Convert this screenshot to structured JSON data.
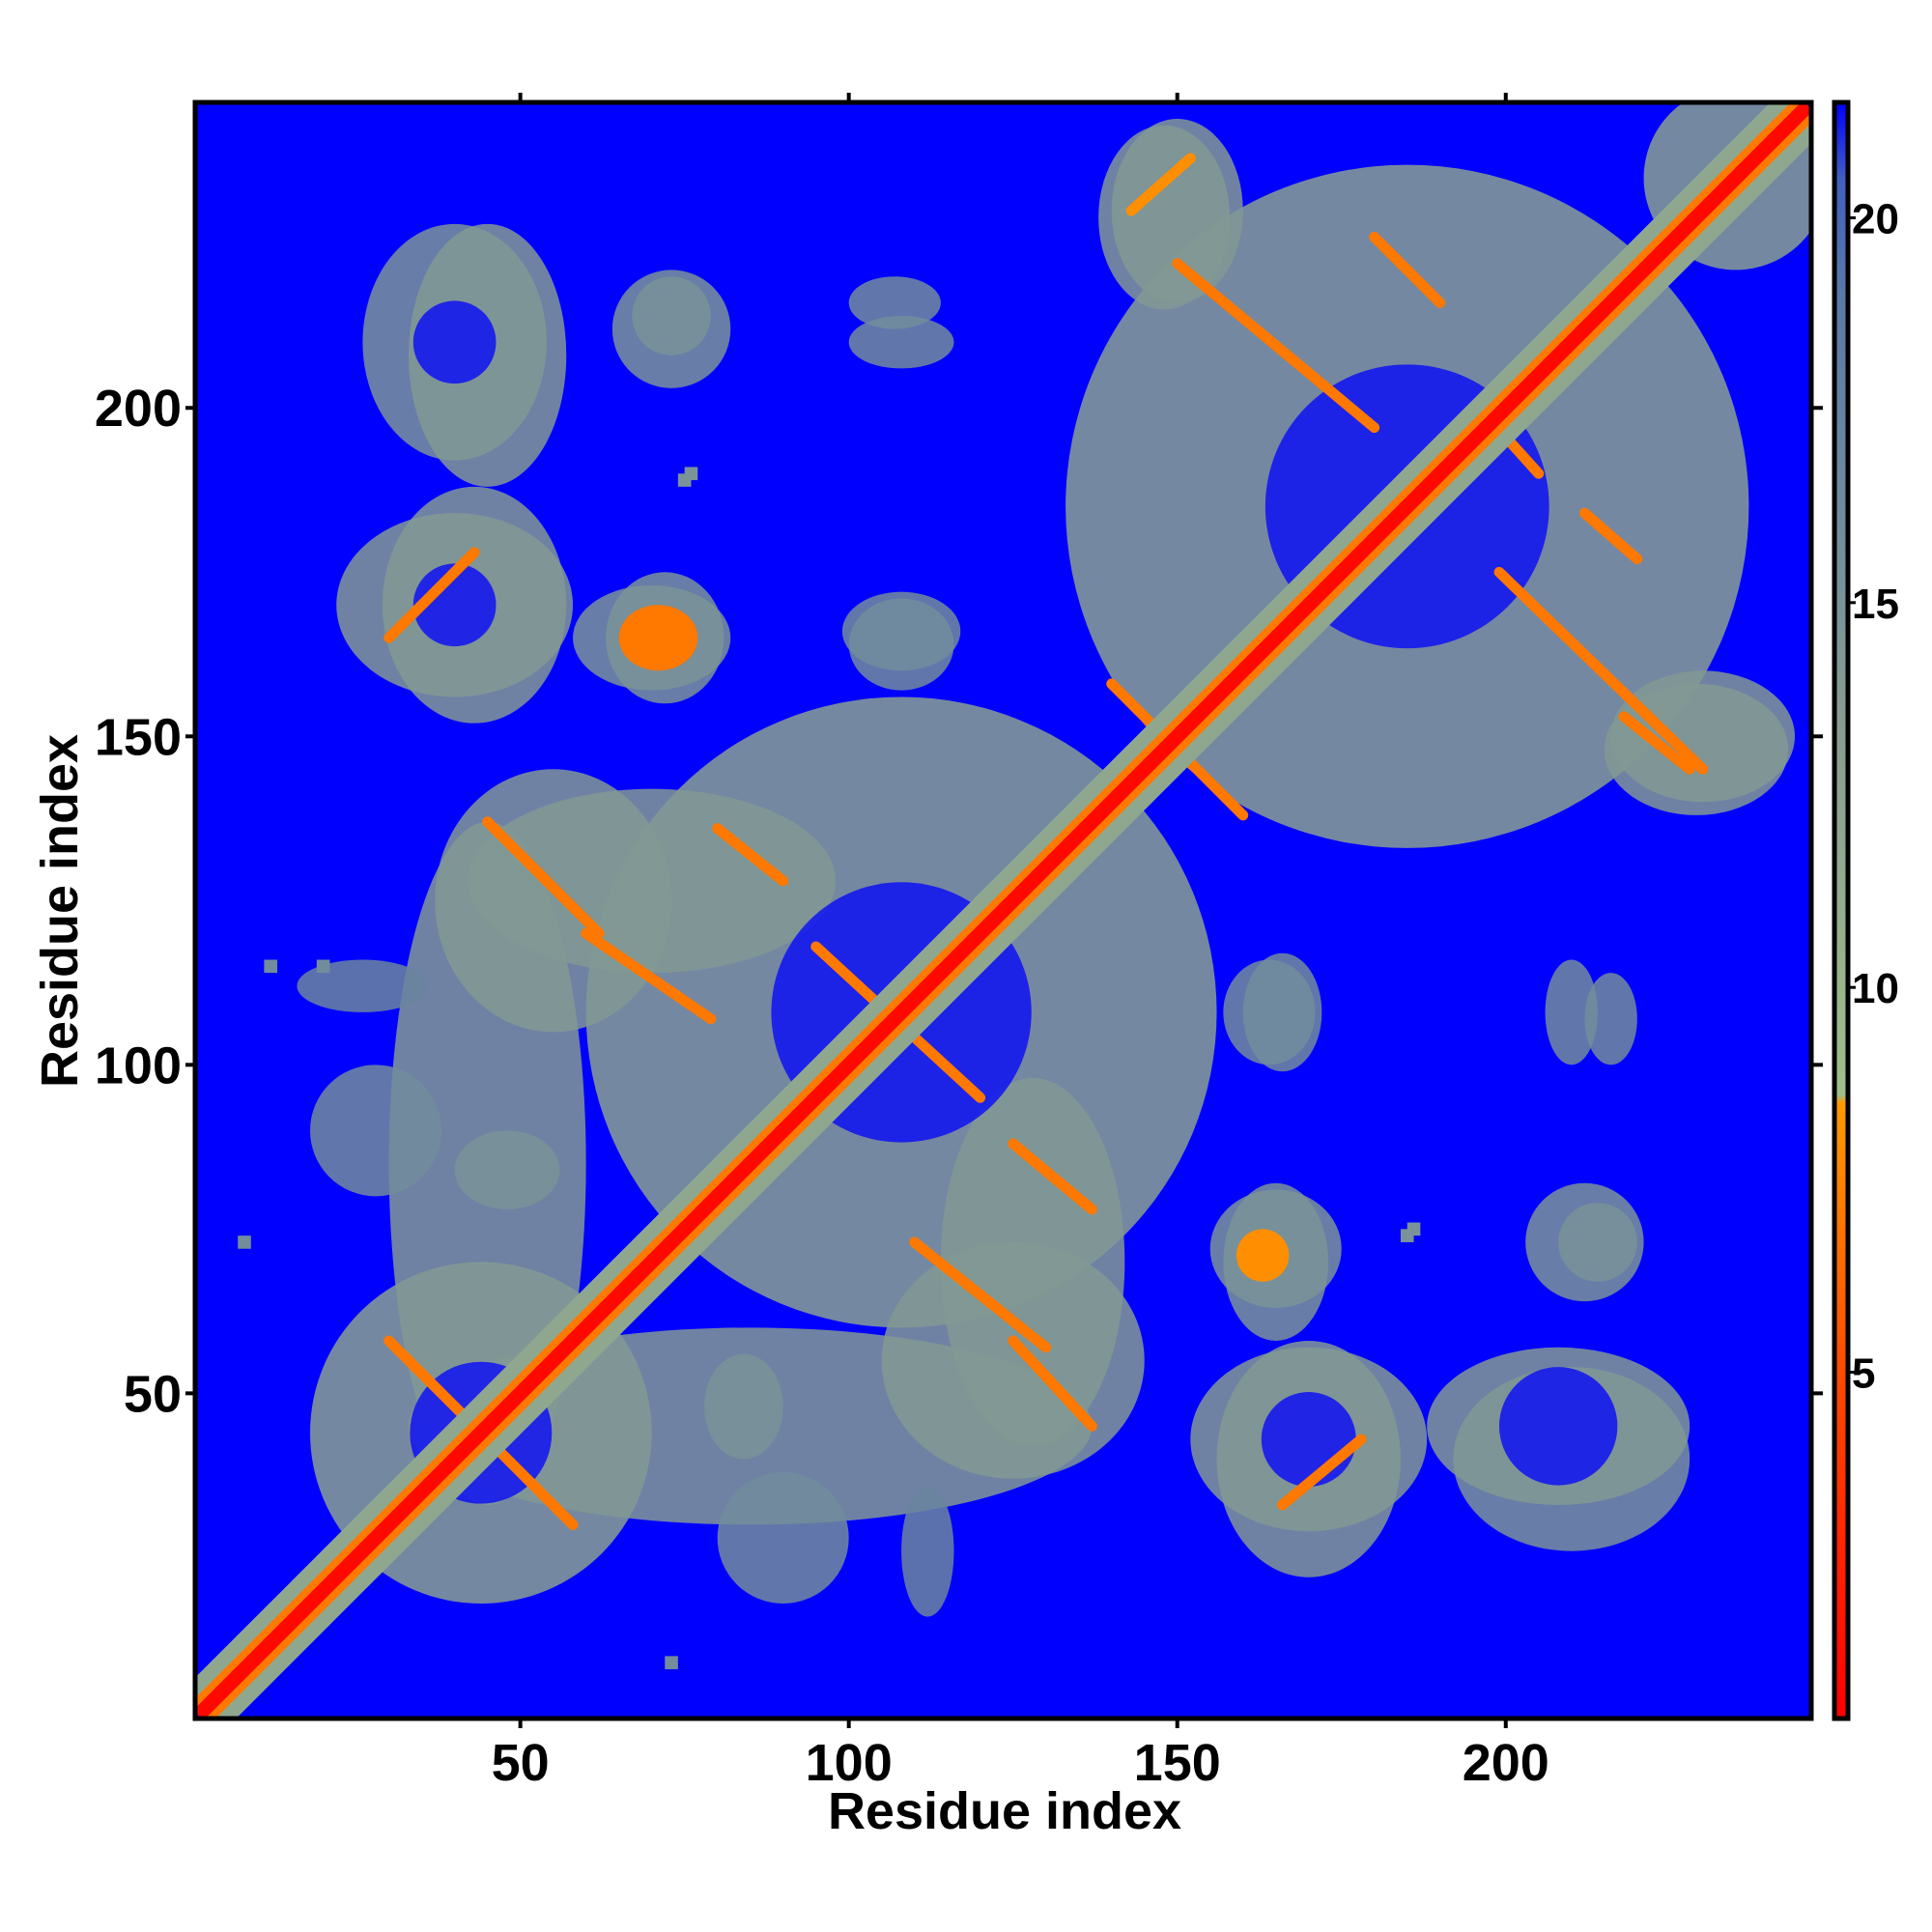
{
  "chart_data": {
    "type": "heatmap",
    "title": "",
    "xlabel": "Residue index",
    "ylabel": "Residue index",
    "xlim": [
      1,
      246
    ],
    "ylim": [
      1,
      246
    ],
    "x_ticks": [
      50,
      100,
      150,
      200
    ],
    "y_ticks": [
      50,
      100,
      150,
      200
    ],
    "x_tick_labels": [
      "50",
      "100",
      "150",
      "200"
    ],
    "y_tick_labels": [
      "50",
      "100",
      "150",
      "200"
    ],
    "colorbar": {
      "range": [
        0.5,
        21.5
      ],
      "ticks": [
        5,
        10,
        15,
        20
      ],
      "tick_labels": [
        "5",
        "10",
        "15",
        "20"
      ],
      "stops": [
        {
          "value": 0.5,
          "color": "#ff0000"
        },
        {
          "value": 5,
          "color": "#ff4a00"
        },
        {
          "value": 8.5,
          "color": "#ff9a00"
        },
        {
          "value": 8.6,
          "color": "#9fbf8a"
        },
        {
          "value": 13,
          "color": "#8aa090"
        },
        {
          "value": 19,
          "color": "#5a78a8"
        },
        {
          "value": 20.5,
          "color": "#4060c0"
        },
        {
          "value": 21.5,
          "color": "#0000ff"
        }
      ]
    },
    "background_value": 21,
    "colors": {
      "background": "#0000ff",
      "diagonal": "#ff0000",
      "contact_core": "#ff9a00",
      "halo": "#9fbf8a",
      "halo_outer": "#7c9a9a"
    },
    "diagonal": {
      "from": 1,
      "to": 246,
      "value": 1
    },
    "diagonal_band_width": 4,
    "features": [
      {
        "kind": "strand",
        "x1": 30,
        "y1": 58,
        "x2": 58,
        "y2": 30,
        "value": 7
      },
      {
        "kind": "strand",
        "x1": 125,
        "y1": 58,
        "x2": 137,
        "y2": 45,
        "value": 7
      },
      {
        "kind": "strand",
        "x1": 110,
        "y1": 73,
        "x2": 130,
        "y2": 57,
        "value": 7
      },
      {
        "kind": "strand",
        "x1": 125,
        "y1": 88,
        "x2": 137,
        "y2": 78,
        "value": 7
      },
      {
        "kind": "strand",
        "x1": 45,
        "y1": 137,
        "x2": 62,
        "y2": 120,
        "value": 7
      },
      {
        "kind": "strand",
        "x1": 60,
        "y1": 120,
        "x2": 79,
        "y2": 107,
        "value": 7
      },
      {
        "kind": "strand",
        "x1": 80,
        "y1": 136,
        "x2": 90,
        "y2": 128,
        "value": 7
      },
      {
        "kind": "strand",
        "x1": 95,
        "y1": 118,
        "x2": 120,
        "y2": 95,
        "value": 7
      },
      {
        "kind": "strand",
        "x1": 140,
        "y1": 158,
        "x2": 160,
        "y2": 138,
        "value": 7
      },
      {
        "kind": "strand",
        "x1": 150,
        "y1": 222,
        "x2": 180,
        "y2": 197,
        "value": 7
      },
      {
        "kind": "strand",
        "x1": 180,
        "y1": 226,
        "x2": 190,
        "y2": 216,
        "value": 7
      },
      {
        "kind": "strand",
        "x1": 196,
        "y1": 200,
        "x2": 205,
        "y2": 190,
        "value": 7
      },
      {
        "kind": "strand",
        "x1": 212,
        "y1": 184,
        "x2": 220,
        "y2": 177,
        "value": 7
      },
      {
        "kind": "strand",
        "x1": 199,
        "y1": 175,
        "x2": 230,
        "y2": 145,
        "value": 7
      },
      {
        "kind": "strand",
        "x1": 218,
        "y1": 153,
        "x2": 228,
        "y2": 145,
        "value": 7
      },
      {
        "kind": "strand",
        "x1": 143,
        "y1": 230,
        "x2": 152,
        "y2": 238,
        "value": 8
      },
      {
        "kind": "strand",
        "x1": 30,
        "y1": 165,
        "x2": 43,
        "y2": 178,
        "value": 7
      },
      {
        "kind": "strand",
        "x1": 166,
        "y1": 33,
        "x2": 178,
        "y2": 43,
        "value": 7
      },
      {
        "kind": "blob",
        "cx": 71,
        "cy": 165,
        "rx": 6,
        "ry": 5,
        "value": 7
      },
      {
        "kind": "blob",
        "cx": 163,
        "cy": 71,
        "rx": 4,
        "ry": 4,
        "value": 8
      },
      {
        "kind": "halo",
        "cx": 44,
        "cy": 44,
        "rx": 26,
        "ry": 26,
        "value": 13
      },
      {
        "kind": "halo",
        "cx": 108,
        "cy": 108,
        "rx": 48,
        "ry": 48,
        "value": 13
      },
      {
        "kind": "halo",
        "cx": 185,
        "cy": 185,
        "rx": 52,
        "ry": 52,
        "value": 13
      },
      {
        "kind": "halo",
        "cx": 235,
        "cy": 235,
        "rx": 14,
        "ry": 14,
        "value": 13
      },
      {
        "kind": "halo",
        "cx": 85,
        "cy": 45,
        "rx": 52,
        "ry": 15,
        "value": 14
      },
      {
        "kind": "halo",
        "cx": 128,
        "cy": 70,
        "rx": 14,
        "ry": 28,
        "value": 14
      },
      {
        "kind": "halo",
        "cx": 55,
        "cy": 125,
        "rx": 18,
        "ry": 20,
        "value": 14
      },
      {
        "kind": "halo",
        "cx": 40,
        "cy": 170,
        "rx": 18,
        "ry": 14,
        "value": 14
      },
      {
        "kind": "halo",
        "cx": 40,
        "cy": 210,
        "rx": 14,
        "ry": 18,
        "value": 15
      },
      {
        "kind": "halo",
        "cx": 73,
        "cy": 214,
        "rx": 6,
        "ry": 6,
        "value": 16
      },
      {
        "kind": "halo",
        "cx": 70,
        "cy": 165,
        "rx": 12,
        "ry": 8,
        "value": 15
      },
      {
        "kind": "halo",
        "cx": 107,
        "cy": 216,
        "rx": 7,
        "ry": 4,
        "value": 16
      },
      {
        "kind": "halo",
        "cx": 108,
        "cy": 166,
        "rx": 9,
        "ry": 6,
        "value": 16
      },
      {
        "kind": "halo",
        "cx": 170,
        "cy": 43,
        "rx": 18,
        "ry": 14,
        "value": 14
      },
      {
        "kind": "halo",
        "cx": 208,
        "cy": 45,
        "rx": 20,
        "ry": 12,
        "value": 14
      },
      {
        "kind": "halo",
        "cx": 165,
        "cy": 72,
        "rx": 10,
        "ry": 9,
        "value": 15
      },
      {
        "kind": "halo",
        "cx": 212,
        "cy": 73,
        "rx": 9,
        "ry": 9,
        "value": 15
      },
      {
        "kind": "halo",
        "cx": 164,
        "cy": 108,
        "rx": 7,
        "ry": 8,
        "value": 16
      },
      {
        "kind": "halo",
        "cx": 210,
        "cy": 108,
        "rx": 4,
        "ry": 8,
        "value": 16
      },
      {
        "kind": "halo",
        "cx": 150,
        "cy": 230,
        "rx": 10,
        "ry": 14,
        "value": 14
      },
      {
        "kind": "halo",
        "cx": 229,
        "cy": 148,
        "rx": 14,
        "ry": 10,
        "value": 14
      },
      {
        "kind": "halo",
        "cx": 28,
        "cy": 90,
        "rx": 10,
        "ry": 10,
        "value": 16
      },
      {
        "kind": "halo",
        "cx": 48,
        "cy": 84,
        "rx": 8,
        "ry": 6,
        "value": 15
      },
      {
        "kind": "halo",
        "cx": 112,
        "cy": 26,
        "rx": 4,
        "ry": 10,
        "value": 17
      }
    ],
    "sparse_points": [
      {
        "x": 75,
        "y": 189,
        "value": 15
      },
      {
        "x": 76,
        "y": 190,
        "value": 15
      },
      {
        "x": 185,
        "y": 74,
        "value": 15
      },
      {
        "x": 186,
        "y": 75,
        "value": 15
      },
      {
        "x": 12,
        "y": 115,
        "value": 16
      },
      {
        "x": 20,
        "y": 115,
        "value": 16
      },
      {
        "x": 8,
        "y": 73,
        "value": 16
      },
      {
        "x": 73,
        "y": 9,
        "value": 16
      }
    ]
  }
}
